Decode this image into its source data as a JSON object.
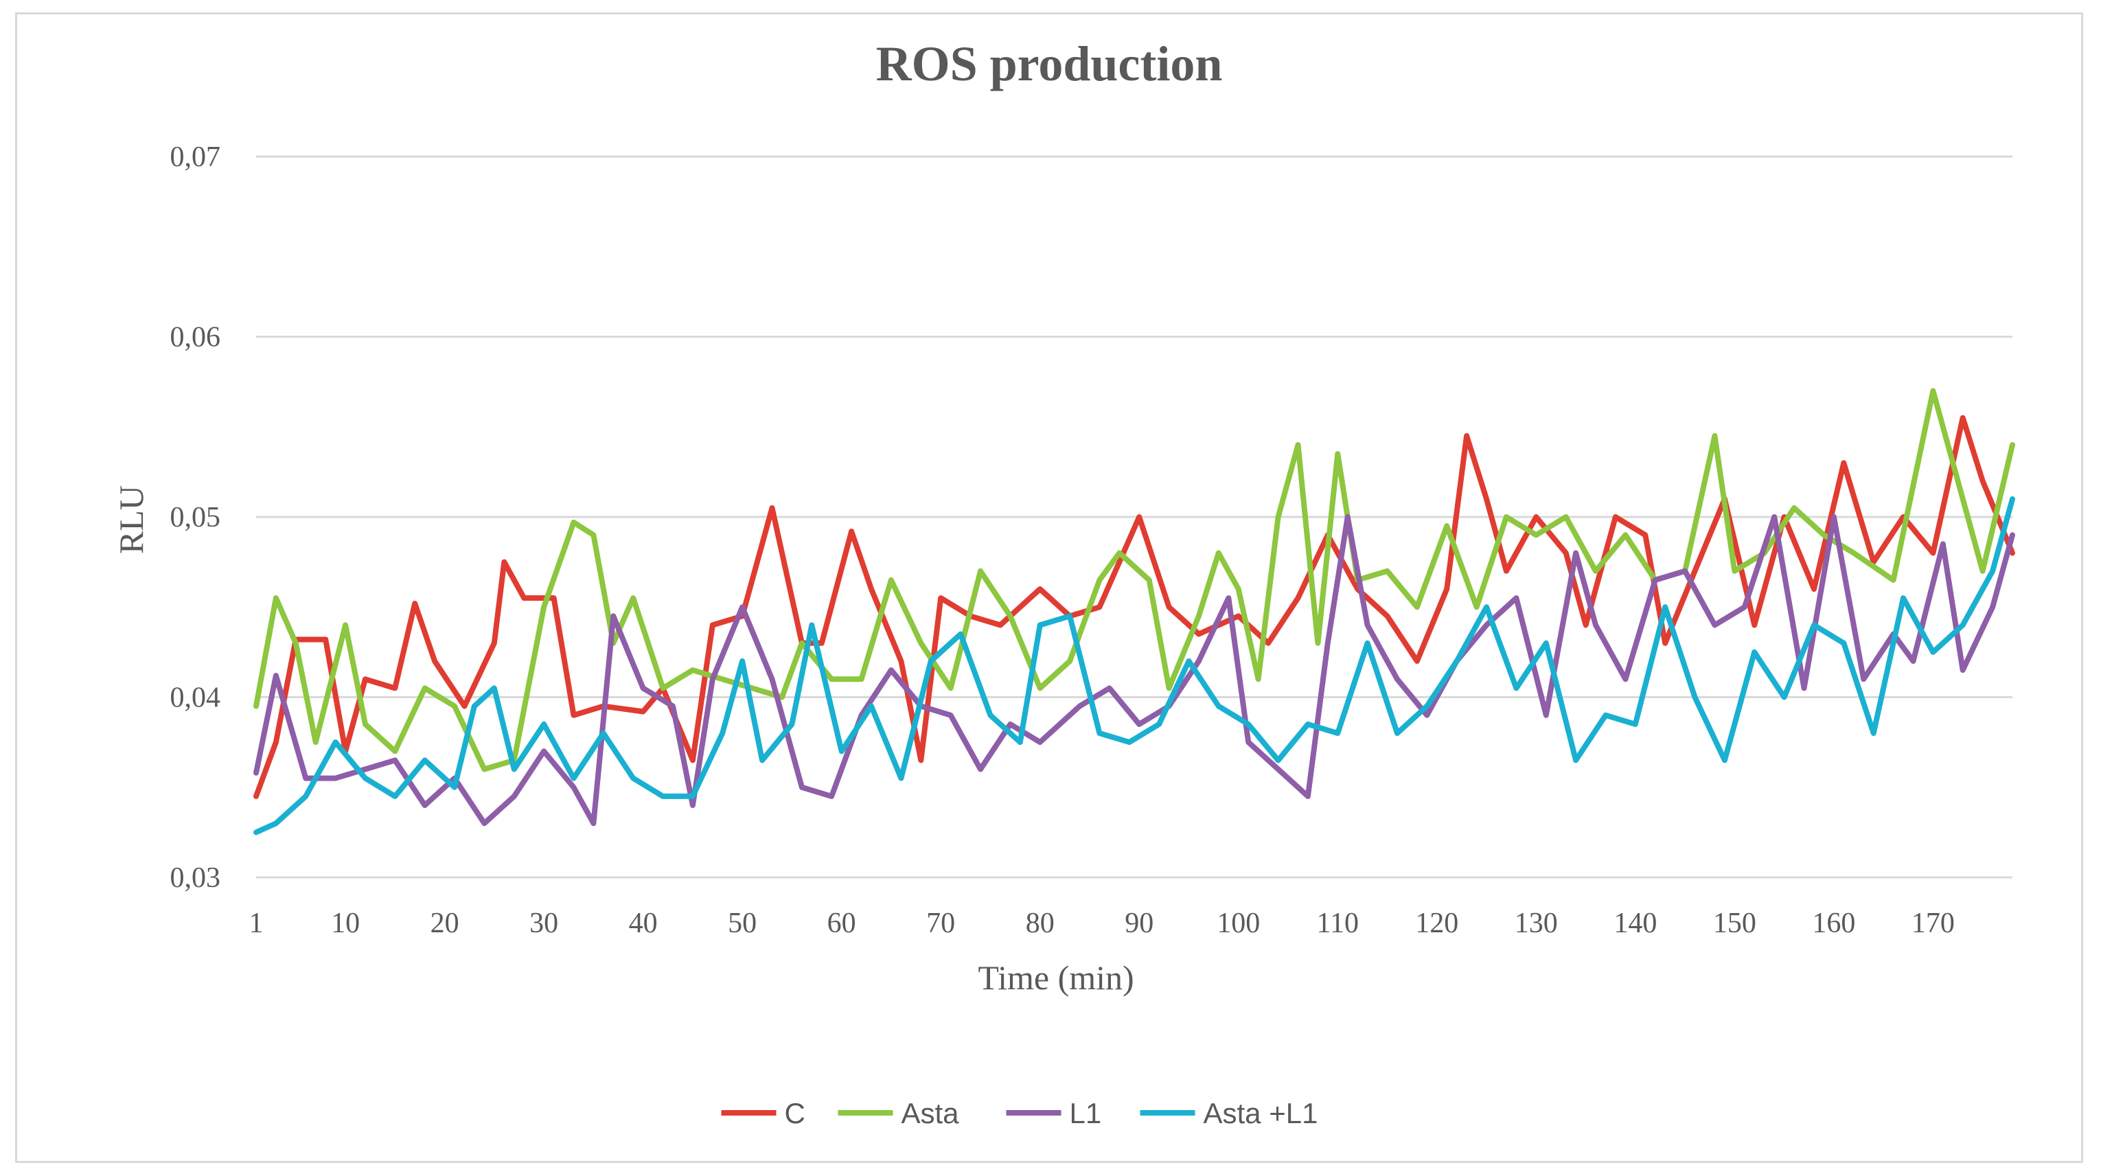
{
  "chart_data": {
    "type": "line",
    "title": "ROS production",
    "xlabel": "Time (min)",
    "ylabel": "RLU",
    "xlim": [
      1,
      178
    ],
    "ylim": [
      0.03,
      0.07
    ],
    "y_ticks": [
      0.03,
      0.04,
      0.05,
      0.06,
      0.07
    ],
    "y_tick_labels": [
      "0,03",
      "0,04",
      "0,05",
      "0,06",
      "0,07"
    ],
    "x_ticks": [
      1,
      10,
      20,
      30,
      40,
      50,
      60,
      70,
      80,
      90,
      100,
      110,
      120,
      130,
      140,
      150,
      160,
      170
    ],
    "x_tick_labels": [
      "1",
      "10",
      "20",
      "30",
      "40",
      "50",
      "60",
      "70",
      "80",
      "90",
      "100",
      "110",
      "120",
      "130",
      "140",
      "150",
      "160",
      "170"
    ],
    "grid": "horizontal",
    "legend_position": "bottom",
    "series": [
      {
        "name": "C",
        "color": "#e03c31",
        "points": [
          [
            1,
            0.0345
          ],
          [
            3,
            0.0375
          ],
          [
            5,
            0.0432
          ],
          [
            8,
            0.0432
          ],
          [
            10,
            0.037
          ],
          [
            12,
            0.041
          ],
          [
            15,
            0.0405
          ],
          [
            17,
            0.0452
          ],
          [
            19,
            0.042
          ],
          [
            22,
            0.0395
          ],
          [
            25,
            0.043
          ],
          [
            26,
            0.0475
          ],
          [
            28,
            0.0455
          ],
          [
            31,
            0.0455
          ],
          [
            33,
            0.039
          ],
          [
            36,
            0.0395
          ],
          [
            40,
            0.0392
          ],
          [
            42,
            0.0405
          ],
          [
            45,
            0.0365
          ],
          [
            47,
            0.044
          ],
          [
            50,
            0.0445
          ],
          [
            53,
            0.0505
          ],
          [
            56,
            0.043
          ],
          [
            58,
            0.043
          ],
          [
            61,
            0.0492
          ],
          [
            63,
            0.046
          ],
          [
            66,
            0.042
          ],
          [
            68,
            0.0365
          ],
          [
            70,
            0.0455
          ],
          [
            73,
            0.0445
          ],
          [
            76,
            0.044
          ],
          [
            80,
            0.046
          ],
          [
            83,
            0.0445
          ],
          [
            86,
            0.045
          ],
          [
            90,
            0.05
          ],
          [
            93,
            0.045
          ],
          [
            96,
            0.0435
          ],
          [
            100,
            0.0445
          ],
          [
            103,
            0.043
          ],
          [
            106,
            0.0455
          ],
          [
            109,
            0.049
          ],
          [
            112,
            0.046
          ],
          [
            115,
            0.0445
          ],
          [
            118,
            0.042
          ],
          [
            121,
            0.046
          ],
          [
            123,
            0.0545
          ],
          [
            125,
            0.051
          ],
          [
            127,
            0.047
          ],
          [
            130,
            0.05
          ],
          [
            133,
            0.048
          ],
          [
            135,
            0.044
          ],
          [
            138,
            0.05
          ],
          [
            141,
            0.049
          ],
          [
            143,
            0.043
          ],
          [
            146,
            0.047
          ],
          [
            149,
            0.051
          ],
          [
            152,
            0.044
          ],
          [
            155,
            0.05
          ],
          [
            158,
            0.046
          ],
          [
            161,
            0.053
          ],
          [
            164,
            0.0475
          ],
          [
            167,
            0.05
          ],
          [
            170,
            0.048
          ],
          [
            173,
            0.0555
          ],
          [
            175,
            0.052
          ],
          [
            178,
            0.048
          ]
        ]
      },
      {
        "name": "Asta",
        "color": "#8dc63f",
        "points": [
          [
            1,
            0.0395
          ],
          [
            3,
            0.0455
          ],
          [
            5,
            0.043
          ],
          [
            7,
            0.0375
          ],
          [
            10,
            0.044
          ],
          [
            12,
            0.0385
          ],
          [
            15,
            0.037
          ],
          [
            18,
            0.0405
          ],
          [
            21,
            0.0395
          ],
          [
            24,
            0.036
          ],
          [
            27,
            0.0365
          ],
          [
            30,
            0.045
          ],
          [
            33,
            0.0497
          ],
          [
            35,
            0.049
          ],
          [
            37,
            0.043
          ],
          [
            39,
            0.0455
          ],
          [
            42,
            0.0405
          ],
          [
            45,
            0.0415
          ],
          [
            48,
            0.041
          ],
          [
            51,
            0.0405
          ],
          [
            54,
            0.04
          ],
          [
            56,
            0.043
          ],
          [
            59,
            0.041
          ],
          [
            62,
            0.041
          ],
          [
            65,
            0.0465
          ],
          [
            68,
            0.043
          ],
          [
            71,
            0.0405
          ],
          [
            74,
            0.047
          ],
          [
            77,
            0.0445
          ],
          [
            80,
            0.0405
          ],
          [
            83,
            0.042
          ],
          [
            86,
            0.0465
          ],
          [
            88,
            0.048
          ],
          [
            91,
            0.0465
          ],
          [
            93,
            0.0405
          ],
          [
            96,
            0.0445
          ],
          [
            98,
            0.048
          ],
          [
            100,
            0.046
          ],
          [
            102,
            0.041
          ],
          [
            104,
            0.05
          ],
          [
            106,
            0.054
          ],
          [
            108,
            0.043
          ],
          [
            110,
            0.0535
          ],
          [
            112,
            0.0465
          ],
          [
            115,
            0.047
          ],
          [
            118,
            0.045
          ],
          [
            121,
            0.0495
          ],
          [
            124,
            0.045
          ],
          [
            127,
            0.05
          ],
          [
            130,
            0.049
          ],
          [
            133,
            0.05
          ],
          [
            136,
            0.047
          ],
          [
            139,
            0.049
          ],
          [
            142,
            0.0465
          ],
          [
            145,
            0.047
          ],
          [
            148,
            0.0545
          ],
          [
            150,
            0.047
          ],
          [
            153,
            0.048
          ],
          [
            156,
            0.0505
          ],
          [
            159,
            0.049
          ],
          [
            162,
            0.048
          ],
          [
            166,
            0.0465
          ],
          [
            170,
            0.057
          ],
          [
            172,
            0.053
          ],
          [
            175,
            0.047
          ],
          [
            178,
            0.054
          ]
        ]
      },
      {
        "name": "L1",
        "color": "#8e5ea8",
        "points": [
          [
            1,
            0.0358
          ],
          [
            3,
            0.0412
          ],
          [
            6,
            0.0355
          ],
          [
            9,
            0.0355
          ],
          [
            12,
            0.036
          ],
          [
            15,
            0.0365
          ],
          [
            18,
            0.034
          ],
          [
            21,
            0.0355
          ],
          [
            24,
            0.033
          ],
          [
            27,
            0.0345
          ],
          [
            30,
            0.037
          ],
          [
            33,
            0.035
          ],
          [
            35,
            0.033
          ],
          [
            37,
            0.0445
          ],
          [
            40,
            0.0405
          ],
          [
            43,
            0.0395
          ],
          [
            45,
            0.034
          ],
          [
            47,
            0.041
          ],
          [
            50,
            0.045
          ],
          [
            53,
            0.041
          ],
          [
            56,
            0.035
          ],
          [
            59,
            0.0345
          ],
          [
            62,
            0.039
          ],
          [
            65,
            0.0415
          ],
          [
            68,
            0.0395
          ],
          [
            71,
            0.039
          ],
          [
            74,
            0.036
          ],
          [
            77,
            0.0385
          ],
          [
            80,
            0.0375
          ],
          [
            84,
            0.0395
          ],
          [
            87,
            0.0405
          ],
          [
            90,
            0.0385
          ],
          [
            93,
            0.0395
          ],
          [
            96,
            0.042
          ],
          [
            99,
            0.0455
          ],
          [
            101,
            0.0375
          ],
          [
            104,
            0.036
          ],
          [
            107,
            0.0345
          ],
          [
            109,
            0.043
          ],
          [
            111,
            0.05
          ],
          [
            113,
            0.044
          ],
          [
            116,
            0.041
          ],
          [
            119,
            0.039
          ],
          [
            122,
            0.042
          ],
          [
            125,
            0.044
          ],
          [
            128,
            0.0455
          ],
          [
            131,
            0.039
          ],
          [
            134,
            0.048
          ],
          [
            136,
            0.044
          ],
          [
            139,
            0.041
          ],
          [
            142,
            0.0465
          ],
          [
            145,
            0.047
          ],
          [
            148,
            0.044
          ],
          [
            151,
            0.045
          ],
          [
            154,
            0.05
          ],
          [
            157,
            0.0405
          ],
          [
            160,
            0.05
          ],
          [
            163,
            0.041
          ],
          [
            166,
            0.0435
          ],
          [
            168,
            0.042
          ],
          [
            171,
            0.0485
          ],
          [
            173,
            0.0415
          ],
          [
            176,
            0.045
          ],
          [
            178,
            0.049
          ]
        ]
      },
      {
        "name": "Asta +L1",
        "color": "#1ab0d1",
        "points": [
          [
            1,
            0.0325
          ],
          [
            3,
            0.033
          ],
          [
            6,
            0.0345
          ],
          [
            9,
            0.0375
          ],
          [
            12,
            0.0355
          ],
          [
            15,
            0.0345
          ],
          [
            18,
            0.0365
          ],
          [
            21,
            0.035
          ],
          [
            23,
            0.0395
          ],
          [
            25,
            0.0405
          ],
          [
            27,
            0.036
          ],
          [
            30,
            0.0385
          ],
          [
            33,
            0.0355
          ],
          [
            36,
            0.038
          ],
          [
            39,
            0.0355
          ],
          [
            42,
            0.0345
          ],
          [
            45,
            0.0345
          ],
          [
            48,
            0.038
          ],
          [
            50,
            0.042
          ],
          [
            52,
            0.0365
          ],
          [
            55,
            0.0385
          ],
          [
            57,
            0.044
          ],
          [
            60,
            0.037
          ],
          [
            63,
            0.0395
          ],
          [
            66,
            0.0355
          ],
          [
            69,
            0.042
          ],
          [
            72,
            0.0435
          ],
          [
            75,
            0.039
          ],
          [
            78,
            0.0375
          ],
          [
            80,
            0.044
          ],
          [
            83,
            0.0445
          ],
          [
            86,
            0.038
          ],
          [
            89,
            0.0375
          ],
          [
            92,
            0.0385
          ],
          [
            95,
            0.042
          ],
          [
            98,
            0.0395
          ],
          [
            101,
            0.0385
          ],
          [
            104,
            0.0365
          ],
          [
            107,
            0.0385
          ],
          [
            110,
            0.038
          ],
          [
            113,
            0.043
          ],
          [
            116,
            0.038
          ],
          [
            119,
            0.0395
          ],
          [
            122,
            0.042
          ],
          [
            125,
            0.045
          ],
          [
            128,
            0.0405
          ],
          [
            131,
            0.043
          ],
          [
            134,
            0.0365
          ],
          [
            137,
            0.039
          ],
          [
            140,
            0.0385
          ],
          [
            143,
            0.045
          ],
          [
            146,
            0.04
          ],
          [
            149,
            0.0365
          ],
          [
            152,
            0.0425
          ],
          [
            155,
            0.04
          ],
          [
            158,
            0.044
          ],
          [
            161,
            0.043
          ],
          [
            164,
            0.038
          ],
          [
            167,
            0.0455
          ],
          [
            170,
            0.0425
          ],
          [
            173,
            0.044
          ],
          [
            176,
            0.047
          ],
          [
            178,
            0.051
          ]
        ]
      }
    ]
  }
}
